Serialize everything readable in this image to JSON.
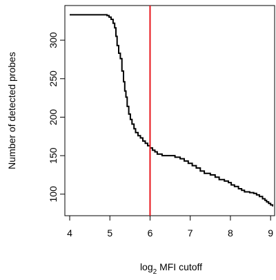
{
  "chart_data": {
    "type": "line",
    "xlabel": {
      "prefix": "log",
      "subscript": "2",
      "suffix": " MFI cutoff"
    },
    "ylabel": "Number of detected probes",
    "xlim": [
      3.88,
      9.1
    ],
    "ylim": [
      72,
      345
    ],
    "x_ticks": [
      4,
      5,
      6,
      7,
      8,
      9
    ],
    "y_ticks": [
      100,
      150,
      200,
      250,
      300
    ],
    "grid": false,
    "legend": "none",
    "line_color": "#000000",
    "cutoff_color": "#e8141a",
    "cutoff_x": 6,
    "series": [
      {
        "points": [
          [
            4.0,
            333
          ],
          [
            4.85,
            333
          ],
          [
            4.93,
            332
          ],
          [
            4.98,
            330
          ],
          [
            5.03,
            327
          ],
          [
            5.08,
            322
          ],
          [
            5.12,
            316
          ],
          [
            5.15,
            305
          ],
          [
            5.18,
            293
          ],
          [
            5.22,
            283
          ],
          [
            5.26,
            276
          ],
          [
            5.3,
            260
          ],
          [
            5.34,
            246
          ],
          [
            5.37,
            234
          ],
          [
            5.4,
            226
          ],
          [
            5.43,
            214
          ],
          [
            5.47,
            204
          ],
          [
            5.51,
            197
          ],
          [
            5.55,
            191
          ],
          [
            5.6,
            185
          ],
          [
            5.64,
            180
          ],
          [
            5.7,
            176
          ],
          [
            5.76,
            173
          ],
          [
            5.82,
            169
          ],
          [
            5.88,
            166
          ],
          [
            5.94,
            163
          ],
          [
            6.0,
            160
          ],
          [
            6.06,
            157
          ],
          [
            6.12,
            155
          ],
          [
            6.18,
            152
          ],
          [
            6.3,
            150
          ],
          [
            6.5,
            150
          ],
          [
            6.62,
            148
          ],
          [
            6.75,
            146
          ],
          [
            6.85,
            143
          ],
          [
            6.95,
            140
          ],
          [
            7.05,
            137
          ],
          [
            7.15,
            134
          ],
          [
            7.25,
            130
          ],
          [
            7.35,
            127
          ],
          [
            7.5,
            125
          ],
          [
            7.62,
            122
          ],
          [
            7.72,
            119
          ],
          [
            7.85,
            117
          ],
          [
            7.95,
            115
          ],
          [
            8.02,
            112
          ],
          [
            8.1,
            110
          ],
          [
            8.2,
            107
          ],
          [
            8.28,
            105
          ],
          [
            8.35,
            103
          ],
          [
            8.48,
            102
          ],
          [
            8.58,
            101
          ],
          [
            8.65,
            99
          ],
          [
            8.72,
            97
          ],
          [
            8.8,
            94
          ],
          [
            8.86,
            92
          ],
          [
            8.9,
            90
          ],
          [
            8.95,
            88
          ],
          [
            9.0,
            86
          ],
          [
            9.05,
            84
          ]
        ]
      }
    ]
  }
}
